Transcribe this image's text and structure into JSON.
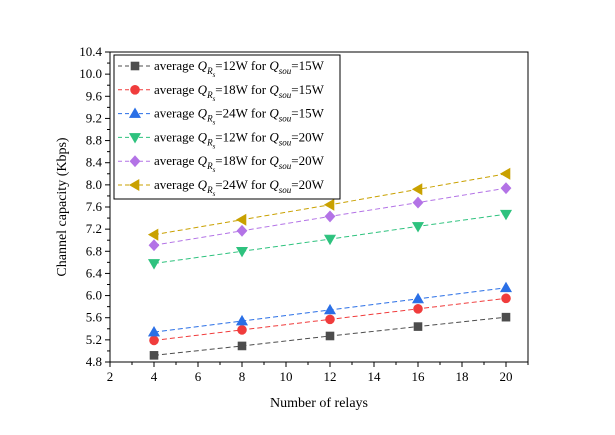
{
  "chart_data": {
    "type": "line",
    "title": "",
    "xlabel": "Number of relays",
    "ylabel": "Channel capacity (Kbps)",
    "xlim": [
      2,
      21
    ],
    "ylim": [
      4.8,
      10.4
    ],
    "xticks": [
      2,
      4,
      6,
      8,
      10,
      12,
      14,
      16,
      18,
      20
    ],
    "yticks": [
      4.8,
      5.2,
      5.6,
      6.0,
      6.4,
      6.8,
      7.2,
      7.6,
      8.0,
      8.4,
      8.8,
      9.2,
      9.6,
      10.0,
      10.4
    ],
    "grid": false,
    "legend_position": "top-left",
    "x": [
      4,
      8,
      12,
      16,
      20
    ],
    "series": [
      {
        "name": "average Q_Rs=12W for Q_sou=15W",
        "label_main": "average ",
        "q1": "Q",
        "sub1": "R",
        "sub2": "s",
        "eq1": "=12W for ",
        "q2": "Q",
        "sub3": "sou",
        "eq2": "=15W",
        "marker": "square",
        "color": "#4d4d4d",
        "values": [
          4.92,
          5.09,
          5.27,
          5.44,
          5.61
        ]
      },
      {
        "name": "average Q_Rs=18W for Q_sou=15W",
        "label_main": "average ",
        "q1": "Q",
        "sub1": "R",
        "sub2": "s",
        "eq1": "=18W for ",
        "q2": "Q",
        "sub3": "sou",
        "eq2": "=15W",
        "marker": "circle",
        "color": "#f03c3c",
        "values": [
          5.19,
          5.38,
          5.57,
          5.76,
          5.95
        ]
      },
      {
        "name": "average Q_Rs=24W for Q_sou=15W",
        "label_main": "average ",
        "q1": "Q",
        "sub1": "R",
        "sub2": "s",
        "eq1": "=24W for ",
        "q2": "Q",
        "sub3": "sou",
        "eq2": "=15W",
        "marker": "triangle-up",
        "color": "#2a6fe6",
        "values": [
          5.34,
          5.54,
          5.74,
          5.94,
          6.14
        ]
      },
      {
        "name": "average Q_Rs=12W for Q_sou=20W",
        "label_main": "average ",
        "q1": "Q",
        "sub1": "R",
        "sub2": "s",
        "eq1": "=12W for ",
        "q2": "Q",
        "sub3": "sou",
        "eq2": "=20W",
        "marker": "triangle-down",
        "color": "#2ec27e",
        "values": [
          6.58,
          6.8,
          7.02,
          7.25,
          7.47
        ]
      },
      {
        "name": "average Q_Rs=18W for Q_sou=20W",
        "label_main": "average ",
        "q1": "Q",
        "sub1": "R",
        "sub2": "s",
        "eq1": "=18W for ",
        "q2": "Q",
        "sub3": "sou",
        "eq2": "=20W",
        "marker": "diamond",
        "color": "#b373e6",
        "values": [
          6.91,
          7.17,
          7.43,
          7.68,
          7.94
        ]
      },
      {
        "name": "average Q_Rs=24W for Q_sou=20W",
        "label_main": "average ",
        "q1": "Q",
        "sub1": "R",
        "sub2": "s",
        "eq1": "=24W for ",
        "q2": "Q",
        "sub3": "sou",
        "eq2": "=20W",
        "marker": "triangle-left",
        "color": "#c9a100",
        "values": [
          7.1,
          7.37,
          7.64,
          7.92,
          8.2
        ]
      }
    ]
  }
}
